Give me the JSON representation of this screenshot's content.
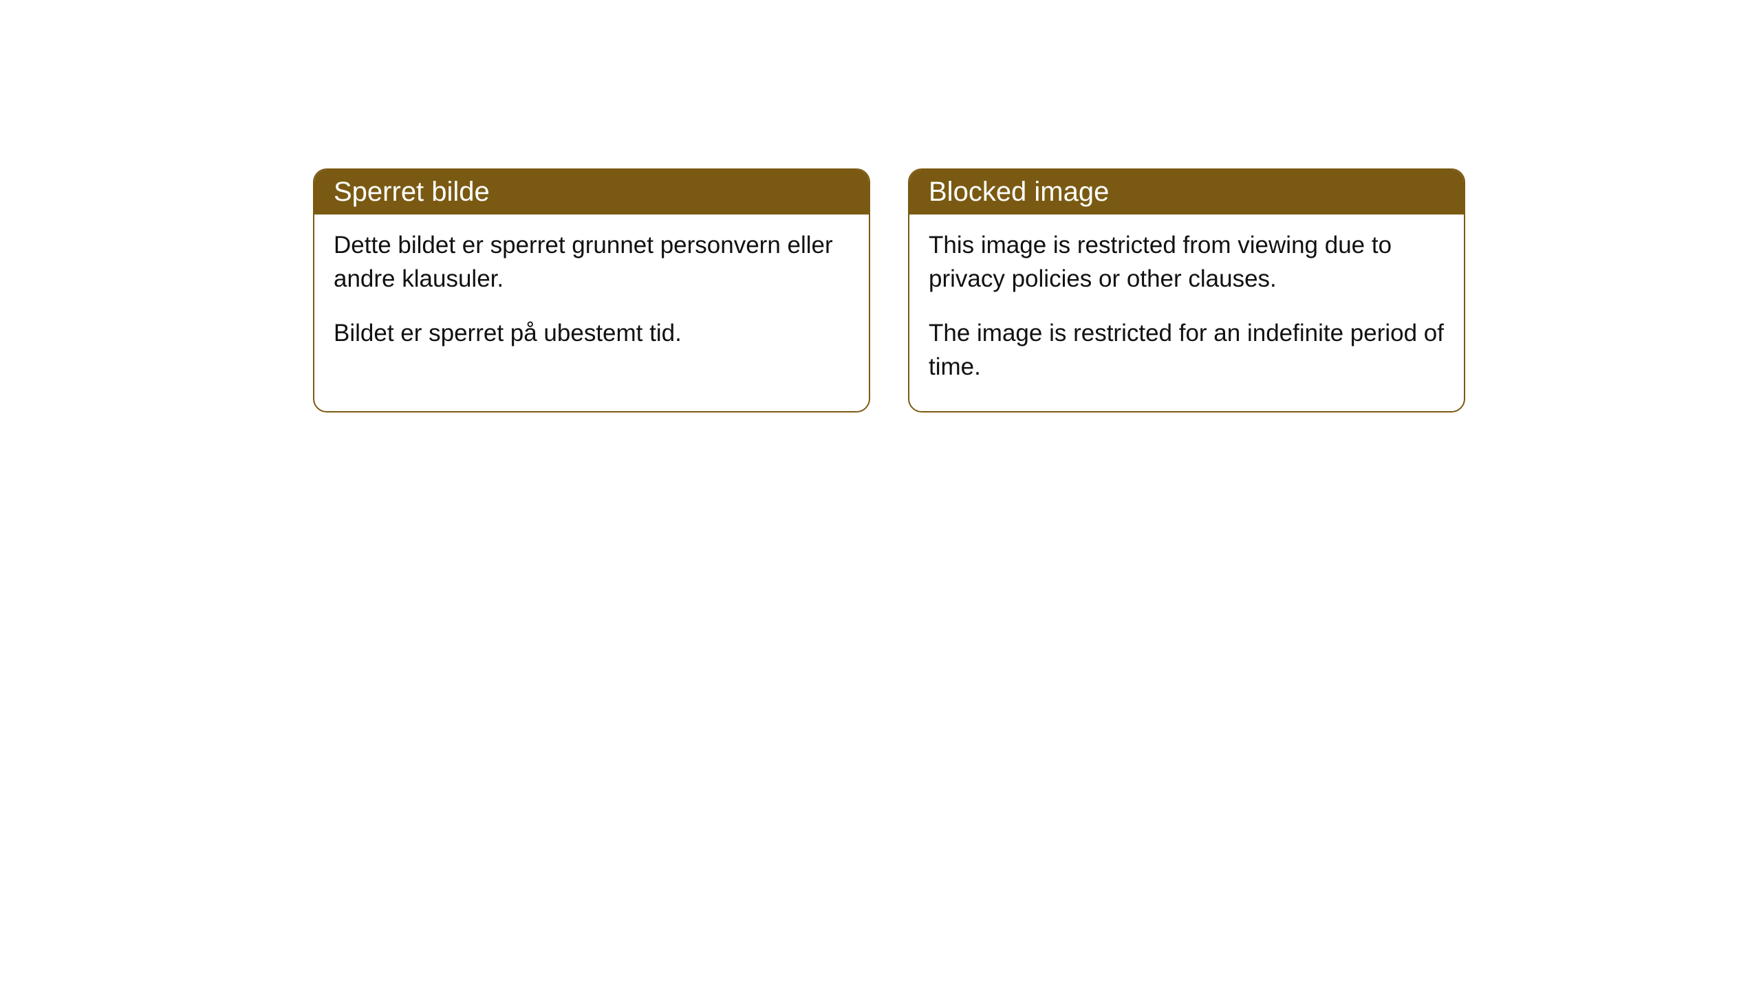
{
  "cards": [
    {
      "title": "Sperret bilde",
      "paragraph1": "Dette bildet er sperret grunnet personvern eller andre klausuler.",
      "paragraph2": "Bildet er sperret på ubestemt tid."
    },
    {
      "title": "Blocked image",
      "paragraph1": "This image is restricted from viewing due to privacy policies or other clauses.",
      "paragraph2": "The image is restricted for an indefinite period of time."
    }
  ],
  "styling": {
    "header_background": "#7a5a13",
    "header_text_color": "#ffffff",
    "border_color": "#7a5a13",
    "body_background": "#ffffff",
    "body_text_color": "#111111",
    "border_radius": 20,
    "title_fontsize": 40,
    "body_fontsize": 35
  }
}
